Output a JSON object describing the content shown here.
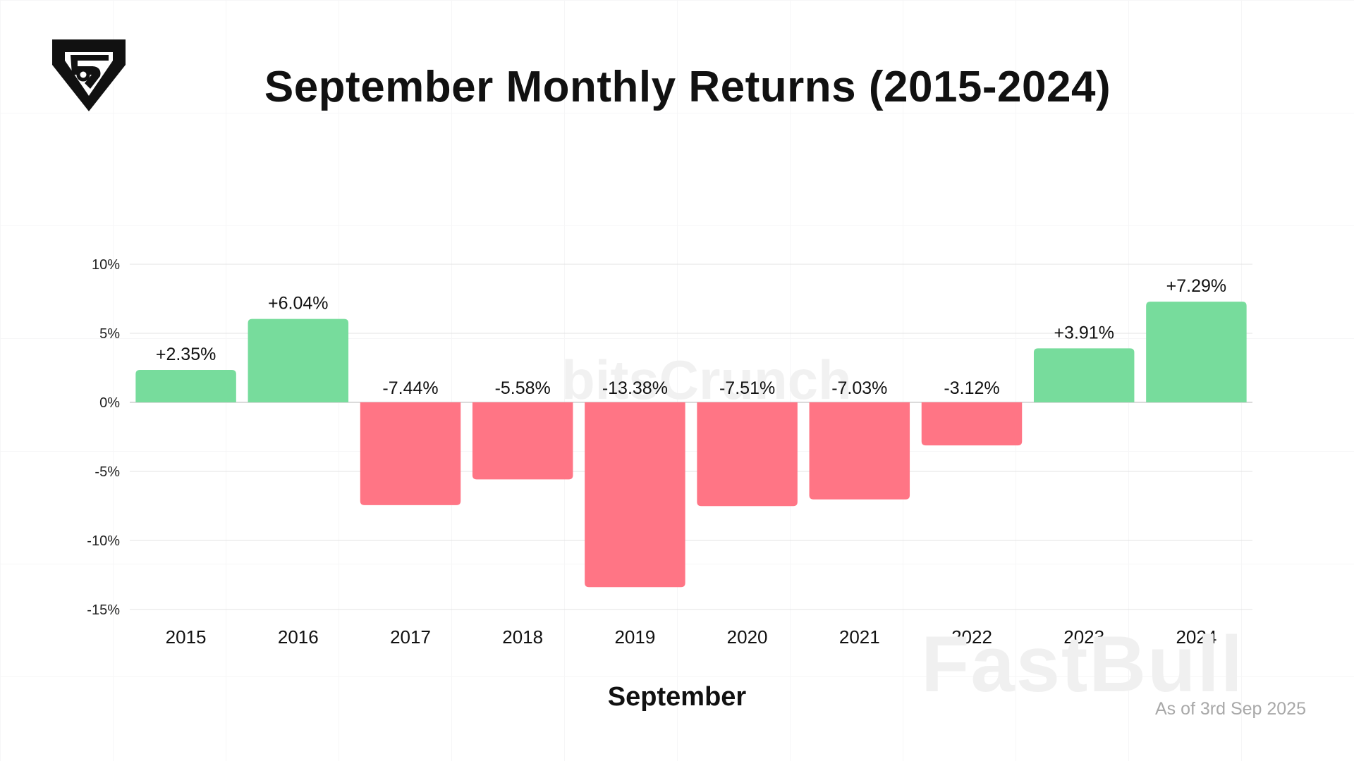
{
  "brand": {
    "logo_icon": "bitscrunch-shield-logo-icon"
  },
  "footer": {
    "as_of": "As of 3rd Sep 2025"
  },
  "watermarks": {
    "fastbull": "FastBull",
    "bitscrunch": "bitsCrunch"
  },
  "chart_data": {
    "type": "bar",
    "title": "September Monthly Returns (2015-2024)",
    "xlabel": "September",
    "ylabel": "",
    "categories": [
      "2015",
      "2016",
      "2017",
      "2018",
      "2019",
      "2020",
      "2021",
      "2022",
      "2023",
      "2024"
    ],
    "values": [
      2.35,
      6.04,
      -7.44,
      -5.58,
      -13.38,
      -7.51,
      -7.03,
      -3.12,
      3.91,
      7.29
    ],
    "value_labels": [
      "+2.35%",
      "+6.04%",
      "-7.44%",
      "-5.58%",
      "-13.38%",
      "-7.51%",
      "-7.03%",
      "-3.12%",
      "+3.91%",
      "+7.29%"
    ],
    "ylim": [
      -15,
      10
    ],
    "yticks": [
      10,
      5,
      0,
      -5,
      -10,
      -15
    ],
    "ytick_labels": [
      "10%",
      "5%",
      "0%",
      "-5%",
      "-10%",
      "-15%"
    ],
    "grid": true,
    "legend": "none",
    "colors": {
      "positive": "#77dc9c",
      "negative": "#ff7585",
      "grid": "#e3e3e3"
    }
  }
}
